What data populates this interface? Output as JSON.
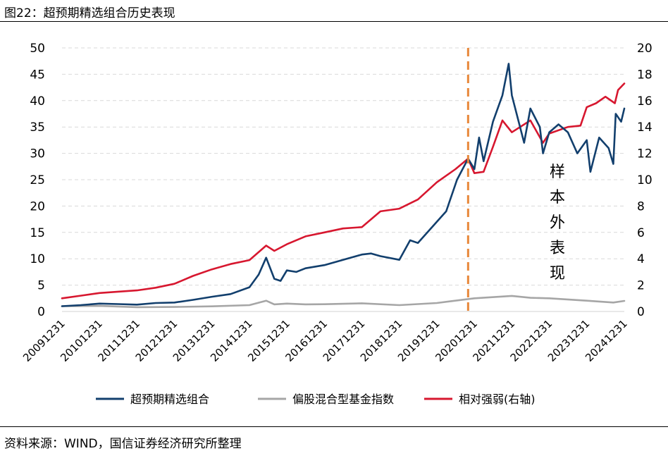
{
  "header": {
    "title": "图22：超预期精选组合历史表现"
  },
  "footer": {
    "source": "资料来源：WIND，国信证券经济研究所整理"
  },
  "chart_data": {
    "type": "line",
    "title": "超预期精选组合历史表现",
    "x_ticks": [
      "20091231",
      "20101231",
      "20111231",
      "20121231",
      "20131231",
      "20141231",
      "20151231",
      "20161231",
      "20171231",
      "20181231",
      "20191231",
      "20201231",
      "20211231",
      "20221231",
      "20231231",
      "20241231"
    ],
    "y_left": {
      "ticks": [
        0,
        5,
        10,
        15,
        20,
        25,
        30,
        35,
        40,
        45,
        50
      ],
      "range": [
        0,
        50
      ]
    },
    "y_right": {
      "ticks": [
        0,
        2,
        4,
        6,
        8,
        10,
        12,
        14,
        16,
        18,
        20
      ],
      "range": [
        0,
        20
      ]
    },
    "grid": true,
    "legend_position": "bottom",
    "divider": {
      "date": "20201031",
      "color": "#E8883A",
      "style": "dashed"
    },
    "annotation": {
      "text": "样本外表现",
      "chars": [
        "样",
        "本",
        "外",
        "表",
        "现"
      ]
    },
    "series": [
      {
        "name": "超预期精选组合",
        "axis": "left",
        "color": "#123F6D",
        "points": [
          [
            "2009-12-31",
            1.0
          ],
          [
            "2010-06-30",
            1.2
          ],
          [
            "2010-12-31",
            1.5
          ],
          [
            "2011-06-30",
            1.4
          ],
          [
            "2011-12-31",
            1.3
          ],
          [
            "2012-06-30",
            1.6
          ],
          [
            "2012-12-31",
            1.7
          ],
          [
            "2013-06-30",
            2.2
          ],
          [
            "2013-12-31",
            2.8
          ],
          [
            "2014-06-30",
            3.3
          ],
          [
            "2014-12-31",
            4.6
          ],
          [
            "2015-03-31",
            7.0
          ],
          [
            "2015-06-12",
            10.2
          ],
          [
            "2015-08-31",
            6.2
          ],
          [
            "2015-10-31",
            5.8
          ],
          [
            "2015-12-31",
            7.8
          ],
          [
            "2016-03-31",
            7.5
          ],
          [
            "2016-06-30",
            8.2
          ],
          [
            "2016-12-31",
            8.8
          ],
          [
            "2017-06-30",
            9.8
          ],
          [
            "2017-12-31",
            10.8
          ],
          [
            "2018-03-31",
            11.0
          ],
          [
            "2018-06-30",
            10.5
          ],
          [
            "2018-12-31",
            9.8
          ],
          [
            "2019-04-15",
            13.5
          ],
          [
            "2019-06-30",
            13.0
          ],
          [
            "2019-12-31",
            17.0
          ],
          [
            "2020-03-31",
            19.0
          ],
          [
            "2020-07-15",
            25.0
          ],
          [
            "2020-10-31",
            29.0
          ],
          [
            "2020-12-31",
            27.0
          ],
          [
            "2021-02-15",
            33.0
          ],
          [
            "2021-03-31",
            28.5
          ],
          [
            "2021-06-30",
            36.0
          ],
          [
            "2021-09-30",
            41.0
          ],
          [
            "2021-11-30",
            47.0
          ],
          [
            "2021-12-31",
            41.0
          ],
          [
            "2022-04-30",
            32.0
          ],
          [
            "2022-06-30",
            38.5
          ],
          [
            "2022-09-30",
            35.0
          ],
          [
            "2022-10-31",
            30.0
          ],
          [
            "2022-12-31",
            34.0
          ],
          [
            "2023-03-31",
            35.5
          ],
          [
            "2023-06-30",
            34.0
          ],
          [
            "2023-09-30",
            30.0
          ],
          [
            "2023-12-31",
            32.5
          ],
          [
            "2024-02-05",
            26.5
          ],
          [
            "2024-04-30",
            33.0
          ],
          [
            "2024-07-31",
            31.0
          ],
          [
            "2024-09-15",
            28.0
          ],
          [
            "2024-10-08",
            37.5
          ],
          [
            "2024-11-30",
            36.0
          ],
          [
            "2024-12-31",
            38.5
          ]
        ]
      },
      {
        "name": "偏股混合型基金指数",
        "axis": "left",
        "color": "#A6A6A6",
        "points": [
          [
            "2009-12-31",
            1.0
          ],
          [
            "2010-12-31",
            1.05
          ],
          [
            "2011-12-31",
            0.82
          ],
          [
            "2012-12-31",
            0.85
          ],
          [
            "2013-12-31",
            0.98
          ],
          [
            "2014-12-31",
            1.2
          ],
          [
            "2015-06-12",
            2.05
          ],
          [
            "2015-08-31",
            1.35
          ],
          [
            "2015-12-31",
            1.5
          ],
          [
            "2016-06-30",
            1.35
          ],
          [
            "2016-12-31",
            1.38
          ],
          [
            "2017-12-31",
            1.55
          ],
          [
            "2018-12-31",
            1.2
          ],
          [
            "2019-12-31",
            1.6
          ],
          [
            "2020-12-31",
            2.5
          ],
          [
            "2021-12-31",
            2.95
          ],
          [
            "2022-06-30",
            2.6
          ],
          [
            "2022-12-31",
            2.5
          ],
          [
            "2023-12-31",
            2.05
          ],
          [
            "2024-09-15",
            1.7
          ],
          [
            "2024-12-31",
            2.0
          ]
        ]
      },
      {
        "name": "相对强弱(右轴)",
        "axis": "right",
        "color": "#D7172F",
        "points": [
          [
            "2009-12-31",
            1.0
          ],
          [
            "2010-06-30",
            1.2
          ],
          [
            "2010-12-31",
            1.4
          ],
          [
            "2011-06-30",
            1.5
          ],
          [
            "2011-12-31",
            1.6
          ],
          [
            "2012-06-30",
            1.8
          ],
          [
            "2012-12-31",
            2.1
          ],
          [
            "2013-06-30",
            2.7
          ],
          [
            "2013-12-31",
            3.2
          ],
          [
            "2014-06-30",
            3.6
          ],
          [
            "2014-12-31",
            3.9
          ],
          [
            "2015-06-12",
            5.0
          ],
          [
            "2015-08-31",
            4.6
          ],
          [
            "2015-12-31",
            5.1
          ],
          [
            "2016-06-30",
            5.7
          ],
          [
            "2016-12-31",
            6.0
          ],
          [
            "2017-06-30",
            6.3
          ],
          [
            "2017-12-31",
            6.4
          ],
          [
            "2018-06-30",
            7.6
          ],
          [
            "2018-12-31",
            7.8
          ],
          [
            "2019-06-30",
            8.5
          ],
          [
            "2019-12-31",
            9.8
          ],
          [
            "2020-06-30",
            10.8
          ],
          [
            "2020-10-31",
            11.6
          ],
          [
            "2020-12-31",
            10.5
          ],
          [
            "2021-03-31",
            10.6
          ],
          [
            "2021-06-30",
            12.5
          ],
          [
            "2021-09-30",
            14.5
          ],
          [
            "2021-12-31",
            13.6
          ],
          [
            "2022-06-30",
            14.5
          ],
          [
            "2022-10-31",
            12.8
          ],
          [
            "2022-12-31",
            13.5
          ],
          [
            "2023-06-30",
            14.0
          ],
          [
            "2023-10-31",
            14.1
          ],
          [
            "2023-12-31",
            15.5
          ],
          [
            "2024-03-31",
            15.8
          ],
          [
            "2024-06-30",
            16.3
          ],
          [
            "2024-09-30",
            15.8
          ],
          [
            "2024-10-31",
            16.8
          ],
          [
            "2024-12-31",
            17.3
          ]
        ]
      }
    ]
  }
}
